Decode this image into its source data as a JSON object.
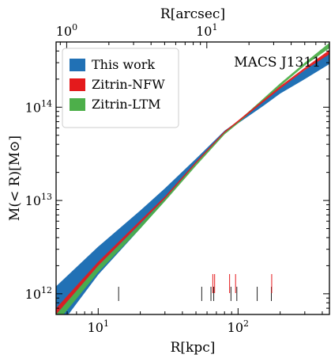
{
  "chart_data": {
    "type": "area",
    "title": "MACS J1311",
    "xlabel": "R[kpc]",
    "ylabel": "M(< R)[M⊙]",
    "top_xlabel": "R[arcsec]",
    "xscale": "log",
    "yscale": "log",
    "xlim": [
      5,
      450
    ],
    "ylim": [
      600000000000.0,
      500000000000000.0
    ],
    "top_xlim": [
      0.84,
      75
    ],
    "x_ticks": [
      {
        "value": 10,
        "label": "10^1"
      },
      {
        "value": 100,
        "label": "10^2"
      }
    ],
    "top_ticks": [
      {
        "value": 1,
        "label": "10^0"
      },
      {
        "value": 10,
        "label": "10^1"
      }
    ],
    "y_ticks": [
      {
        "value": 1000000000000.0,
        "label": "10^12"
      },
      {
        "value": 10000000000000.0,
        "label": "10^13"
      },
      {
        "value": 100000000000000.0,
        "label": "10^14"
      }
    ],
    "legend_position": "top-left",
    "series": [
      {
        "name": "This work",
        "color": "#2171b5",
        "kind": "band",
        "x": [
          5,
          10,
          20,
          30,
          50,
          80,
          100,
          150,
          200,
          300,
          450
        ],
        "lower": [
          400000000000.0,
          1600000000000.0,
          5000000000000.0,
          10000000000000.0,
          25000000000000.0,
          53000000000000.0,
          67000000000000.0,
          102000000000000.0,
          140000000000000.0,
          200000000000000.0,
          290000000000000.0
        ],
        "upper": [
          1200000000000.0,
          3200000000000.0,
          7800000000000.0,
          13500000000000.0,
          28000000000000.0,
          56000000000000.0,
          71000000000000.0,
          115000000000000.0,
          160000000000000.0,
          250000000000000.0,
          380000000000000.0
        ]
      },
      {
        "name": "Zitrin-NFW",
        "color": "#e41a1c",
        "kind": "band",
        "x": [
          5,
          10,
          20,
          30,
          50,
          80,
          100,
          150,
          200,
          300,
          450
        ],
        "lower": [
          600000000000.0,
          2000000000000.0,
          5700000000000.0,
          10500000000000.0,
          25000000000000.0,
          53000000000000.0,
          69000000000000.0,
          112000000000000.0,
          158000000000000.0,
          250000000000000.0,
          370000000000000.0
        ],
        "upper": [
          700000000000.0,
          2200000000000.0,
          6100000000000.0,
          11000000000000.0,
          26000000000000.0,
          55000000000000.0,
          72000000000000.0,
          118000000000000.0,
          168000000000000.0,
          265000000000000.0,
          410000000000000.0
        ]
      },
      {
        "name": "Zitrin-LTM",
        "color": "#4daf4a",
        "kind": "band",
        "x": [
          5,
          10,
          20,
          30,
          50,
          80,
          100,
          150,
          200,
          300,
          450
        ],
        "lower": [
          480000000000.0,
          1700000000000.0,
          5000000000000.0,
          9800000000000.0,
          23500000000000.0,
          51000000000000.0,
          67000000000000.0,
          115000000000000.0,
          168000000000000.0,
          280000000000000.0,
          430000000000000.0
        ],
        "upper": [
          600000000000.0,
          2000000000000.0,
          5600000000000.0,
          10500000000000.0,
          25000000000000.0,
          54000000000000.0,
          71000000000000.0,
          122000000000000.0,
          180000000000000.0,
          300000000000000.0,
          490000000000000.0
        ]
      }
    ],
    "black_ticks_x": [
      14,
      55,
      64,
      67,
      89,
      98,
      137,
      173
    ],
    "red_ticks_x": [
      66,
      68,
      87,
      96,
      174
    ]
  }
}
